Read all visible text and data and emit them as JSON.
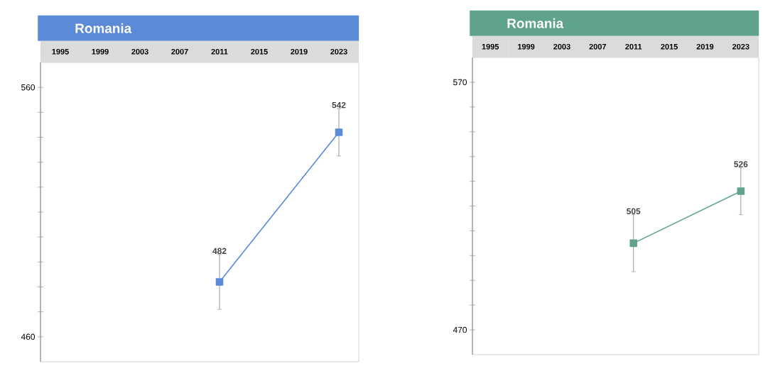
{
  "chart_data": [
    {
      "type": "line",
      "title": "Romania",
      "categories": [
        "1995",
        "1999",
        "2003",
        "2007",
        "2011",
        "2015",
        "2019",
        "2023"
      ],
      "series": [
        {
          "color": "#5b8ad6",
          "values": [
            null,
            null,
            null,
            null,
            482,
            null,
            null,
            542
          ],
          "errors": [
            null,
            null,
            null,
            null,
            11,
            null,
            null,
            9.5
          ],
          "value_labels": [
            null,
            null,
            null,
            null,
            "482",
            null,
            null,
            "542"
          ]
        }
      ],
      "ylim": [
        450,
        570
      ],
      "yticks": [
        460,
        {
          "value": 470,
          "label": null
        },
        {
          "value": 480,
          "label": null
        },
        {
          "value": 490,
          "label": null
        },
        {
          "value": 500,
          "label": null
        },
        {
          "value": 510,
          "label": null
        },
        {
          "value": 520,
          "label": null
        },
        {
          "value": 530,
          "label": null
        },
        {
          "value": 540,
          "label": null
        },
        {
          "value": 550,
          "label": null
        },
        560
      ],
      "marker": "square",
      "grid": false
    },
    {
      "type": "line",
      "title": "Romania",
      "categories": [
        "1995",
        "1999",
        "2003",
        "2007",
        "2011",
        "2015",
        "2019",
        "2023"
      ],
      "series": [
        {
          "color": "#5fa38e",
          "values": [
            null,
            null,
            null,
            null,
            505,
            null,
            null,
            526
          ],
          "errors": [
            null,
            null,
            null,
            null,
            11.5,
            null,
            null,
            9.5
          ],
          "value_labels": [
            null,
            null,
            null,
            null,
            "505",
            null,
            null,
            "526"
          ]
        }
      ],
      "ylim": [
        460,
        580
      ],
      "yticks": [
        470,
        {
          "value": 480,
          "label": null
        },
        {
          "value": 490,
          "label": null
        },
        {
          "value": 500,
          "label": null
        },
        {
          "value": 510,
          "label": null
        },
        {
          "value": 520,
          "label": null
        },
        {
          "value": 530,
          "label": null
        },
        {
          "value": 540,
          "label": null
        },
        {
          "value": 550,
          "label": null
        },
        {
          "value": 560,
          "label": null
        },
        570
      ],
      "marker": "square",
      "grid": false
    }
  ]
}
